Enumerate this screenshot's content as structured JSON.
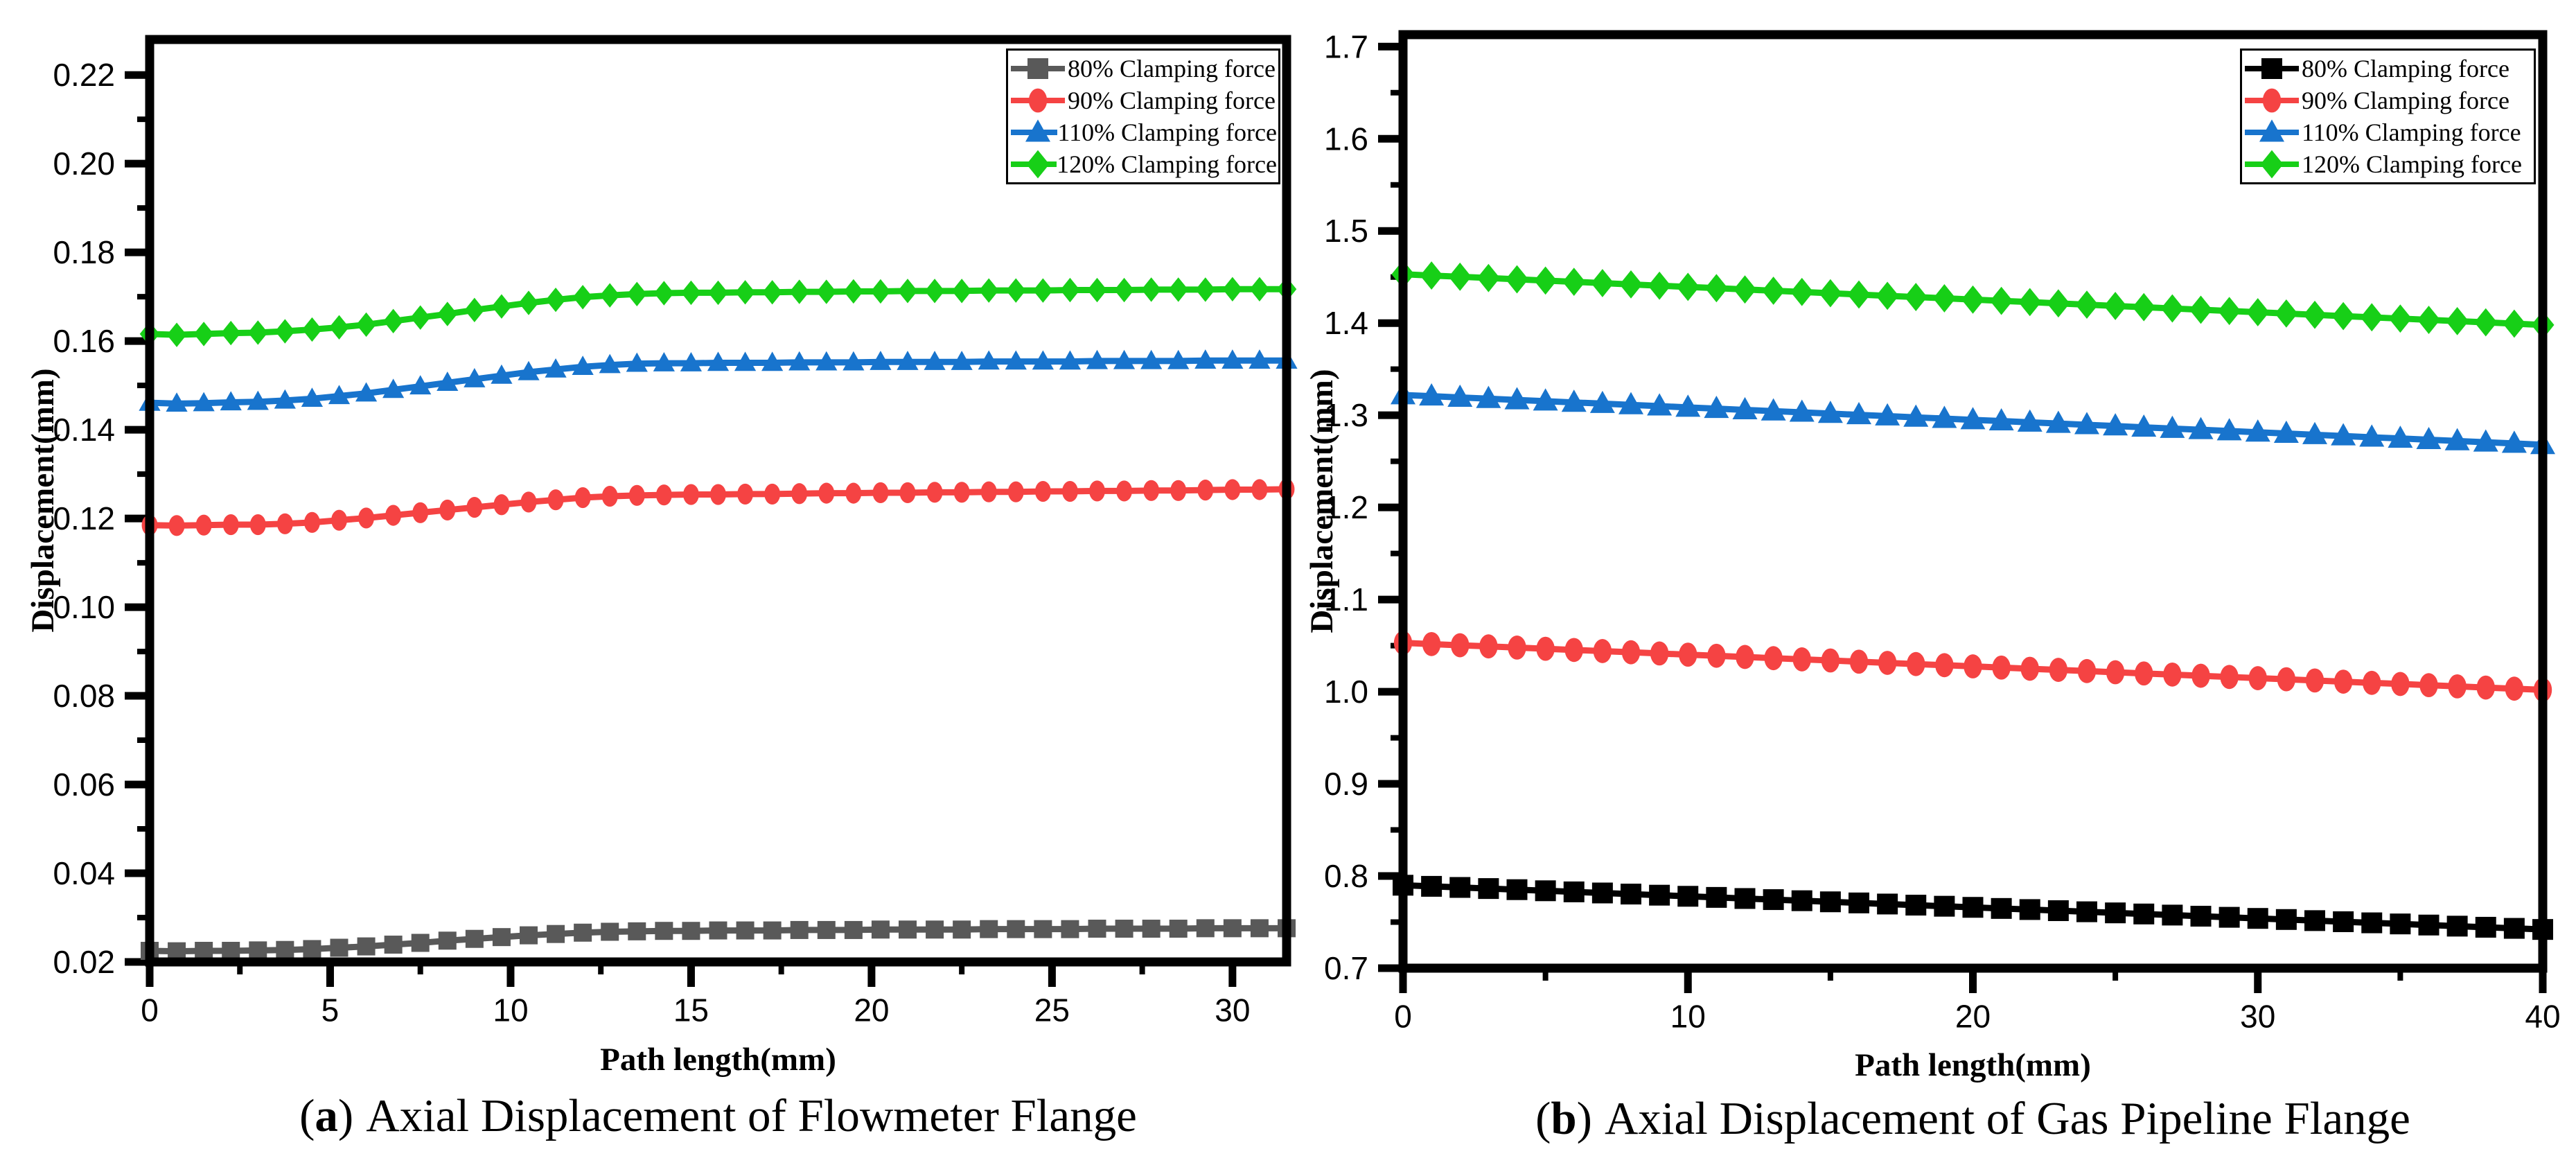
{
  "figure": {
    "background": "#ffffff"
  },
  "chart_data": [
    {
      "type": "line",
      "caption": {
        "open": "(",
        "letter": "a",
        "close": ")",
        "text": "Axial Displacement of Flowmeter Flange"
      },
      "xlabel": "Path length(mm)",
      "ylabel": "Displacement(mm)",
      "xlim": [
        0,
        31.5
      ],
      "ylim": [
        0.02,
        0.228
      ],
      "grid": false,
      "legend_position": "top-right",
      "xticks": {
        "values": [
          0,
          5,
          10,
          15,
          20,
          25,
          30
        ],
        "labels": [
          "0",
          "5",
          "10",
          "15",
          "20",
          "25",
          "30"
        ],
        "minor": [
          2.5,
          7.5,
          12.5,
          17.5,
          22.5,
          27.5
        ]
      },
      "yticks": {
        "values": [
          0.02,
          0.04,
          0.06,
          0.08,
          0.1,
          0.12,
          0.14,
          0.16,
          0.18,
          0.2,
          0.22
        ],
        "labels": [
          "0.02",
          "0.04",
          "0.06",
          "0.08",
          "0.10",
          "0.12",
          "0.14",
          "0.16",
          "0.18",
          "0.20",
          "0.22"
        ],
        "minor": [
          0.03,
          0.05,
          0.07,
          0.09,
          0.11,
          0.13,
          0.15,
          0.17,
          0.19,
          0.21
        ]
      },
      "x": [
        0,
        0.75,
        1.5,
        2.25,
        3,
        3.75,
        4.5,
        5.25,
        6,
        6.75,
        7.5,
        8.25,
        9,
        9.75,
        10.5,
        11.25,
        12,
        12.75,
        13.5,
        14.25,
        15,
        15.75,
        16.5,
        17.25,
        18,
        18.75,
        19.5,
        20.25,
        21,
        21.75,
        22.5,
        23.25,
        24,
        24.75,
        25.5,
        26.25,
        27,
        27.75,
        28.5,
        29.25,
        30,
        30.75,
        31.5
      ],
      "series": [
        {
          "name": "80% Clamping force",
          "color": "#595959",
          "marker": "square",
          "values": [
            0.0225,
            0.0224,
            0.0225,
            0.0225,
            0.0226,
            0.0227,
            0.0229,
            0.0232,
            0.0235,
            0.0239,
            0.0243,
            0.0248,
            0.0252,
            0.0256,
            0.026,
            0.0263,
            0.0266,
            0.0268,
            0.0269,
            0.027,
            0.027,
            0.0271,
            0.0271,
            0.0271,
            0.0272,
            0.0272,
            0.0272,
            0.0273,
            0.0273,
            0.0273,
            0.0273,
            0.0274,
            0.0274,
            0.0274,
            0.0274,
            0.0275,
            0.0275,
            0.0275,
            0.0275,
            0.0276,
            0.0276,
            0.0276,
            0.0276
          ]
        },
        {
          "name": "90% Clamping force",
          "color": "#F54343",
          "marker": "circle",
          "values": [
            0.1185,
            0.1184,
            0.1185,
            0.1186,
            0.1186,
            0.1188,
            0.1191,
            0.1196,
            0.1201,
            0.1207,
            0.1213,
            0.1219,
            0.1225,
            0.1231,
            0.1237,
            0.1242,
            0.1247,
            0.125,
            0.1252,
            0.1253,
            0.1254,
            0.1254,
            0.1255,
            0.1255,
            0.1256,
            0.1257,
            0.1257,
            0.1258,
            0.1258,
            0.1259,
            0.1259,
            0.126,
            0.126,
            0.1261,
            0.1261,
            0.1262,
            0.1262,
            0.1263,
            0.1263,
            0.1264,
            0.1265,
            0.1265,
            0.1266
          ]
        },
        {
          "name": "110% Clamping force",
          "color": "#1874CD",
          "marker": "triangle",
          "values": [
            0.1461,
            0.1459,
            0.146,
            0.1462,
            0.1463,
            0.1466,
            0.147,
            0.1476,
            0.1482,
            0.149,
            0.1498,
            0.1506,
            0.1514,
            0.1522,
            0.153,
            0.1536,
            0.1542,
            0.1546,
            0.1549,
            0.155,
            0.155,
            0.1551,
            0.1551,
            0.1551,
            0.1552,
            0.1552,
            0.1552,
            0.1553,
            0.1553,
            0.1553,
            0.1553,
            0.1554,
            0.1554,
            0.1554,
            0.1554,
            0.1555,
            0.1555,
            0.1555,
            0.1555,
            0.1556,
            0.1556,
            0.1556,
            0.1556
          ]
        },
        {
          "name": "120% Clamping force",
          "color": "#17CF17",
          "marker": "diamond",
          "values": [
            0.1616,
            0.1614,
            0.1616,
            0.1618,
            0.1619,
            0.1622,
            0.1626,
            0.1631,
            0.1637,
            0.1645,
            0.1653,
            0.1661,
            0.167,
            0.1678,
            0.1686,
            0.1693,
            0.1699,
            0.1703,
            0.1706,
            0.1708,
            0.1709,
            0.1709,
            0.171,
            0.171,
            0.1711,
            0.1711,
            0.1712,
            0.1712,
            0.1713,
            0.1713,
            0.1713,
            0.1714,
            0.1714,
            0.1714,
            0.1715,
            0.1715,
            0.1715,
            0.1716,
            0.1716,
            0.1716,
            0.1717,
            0.1717,
            0.1717
          ]
        }
      ]
    },
    {
      "type": "line",
      "caption": {
        "open": "(",
        "letter": "b",
        "close": ")",
        "text": "Axial Displacement of Gas Pipeline Flange"
      },
      "xlabel": "Path length(mm)",
      "ylabel": "Displacement(mm)",
      "xlim": [
        0,
        40
      ],
      "ylim": [
        0.7,
        1.713
      ],
      "grid": false,
      "legend_position": "top-right",
      "xticks": {
        "values": [
          0,
          10,
          20,
          30,
          40
        ],
        "labels": [
          "0",
          "10",
          "20",
          "30",
          "40"
        ],
        "minor": [
          5,
          15,
          25,
          35
        ]
      },
      "yticks": {
        "values": [
          0.7,
          0.8,
          0.9,
          1.0,
          1.1,
          1.2,
          1.3,
          1.4,
          1.5,
          1.6,
          1.7
        ],
        "labels": [
          "0.7",
          "0.8",
          "0.9",
          "1.0",
          "1.1",
          "1.2",
          "1.3",
          "1.4",
          "1.5",
          "1.6",
          "1.7"
        ],
        "minor": [
          0.75,
          0.85,
          0.95,
          1.05,
          1.15,
          1.25,
          1.35,
          1.45,
          1.55,
          1.65
        ]
      },
      "x": [
        0,
        1,
        2,
        3,
        4,
        5,
        6,
        7,
        8,
        9,
        10,
        11,
        12,
        13,
        14,
        15,
        16,
        17,
        18,
        19,
        20,
        21,
        22,
        23,
        24,
        25,
        26,
        27,
        28,
        29,
        30,
        31,
        32,
        33,
        34,
        35,
        36,
        37,
        38,
        39,
        40
      ],
      "series": [
        {
          "name": "80% Clamping force",
          "color": "#000000",
          "marker": "square",
          "values": [
            0.79,
            0.7888,
            0.7876,
            0.7864,
            0.7852,
            0.784,
            0.7828,
            0.7816,
            0.7804,
            0.7792,
            0.778,
            0.7768,
            0.7756,
            0.7744,
            0.7732,
            0.772,
            0.7708,
            0.7696,
            0.7684,
            0.7672,
            0.766,
            0.7648,
            0.7636,
            0.7624,
            0.7612,
            0.76,
            0.7588,
            0.7576,
            0.7564,
            0.7552,
            0.754,
            0.7528,
            0.7516,
            0.7504,
            0.7492,
            0.748,
            0.7468,
            0.7456,
            0.7444,
            0.7432,
            0.742
          ]
        },
        {
          "name": "90% Clamping force",
          "color": "#F54343",
          "marker": "circle",
          "values": [
            1.053,
            1.0517,
            1.0504,
            1.0492,
            1.0479,
            1.0466,
            1.0453,
            1.0441,
            1.0428,
            1.0415,
            1.0402,
            1.039,
            1.0377,
            1.0364,
            1.0351,
            1.0339,
            1.0326,
            1.0313,
            1.03,
            1.0288,
            1.0275,
            1.0262,
            1.0249,
            1.0237,
            1.0224,
            1.0211,
            1.0198,
            1.0186,
            1.0173,
            1.016,
            1.0147,
            1.0135,
            1.0122,
            1.0109,
            1.0096,
            1.0084,
            1.0071,
            1.0058,
            1.0045,
            1.0033,
            1.002
          ]
        },
        {
          "name": "110% Clamping force",
          "color": "#1874CD",
          "marker": "triangle",
          "values": [
            1.322,
            1.3207,
            1.3193,
            1.318,
            1.3166,
            1.3153,
            1.3139,
            1.3126,
            1.3112,
            1.3099,
            1.3085,
            1.3072,
            1.3058,
            1.3045,
            1.3031,
            1.3018,
            1.3004,
            1.2991,
            1.2977,
            1.2964,
            1.295,
            1.2937,
            1.2923,
            1.291,
            1.2896,
            1.2883,
            1.2869,
            1.2856,
            1.2842,
            1.2829,
            1.2815,
            1.2802,
            1.2788,
            1.2775,
            1.2761,
            1.2748,
            1.2734,
            1.2721,
            1.2707,
            1.2694,
            1.268
          ]
        },
        {
          "name": "120% Clamping force",
          "color": "#17CF17",
          "marker": "diamond",
          "values": [
            1.453,
            1.4516,
            1.4503,
            1.4489,
            1.4475,
            1.4461,
            1.4448,
            1.4434,
            1.442,
            1.4406,
            1.4393,
            1.4379,
            1.4365,
            1.4351,
            1.4338,
            1.4324,
            1.431,
            1.4296,
            1.4283,
            1.4269,
            1.4255,
            1.4241,
            1.4228,
            1.4214,
            1.42,
            1.4186,
            1.4173,
            1.4159,
            1.4145,
            1.4131,
            1.4118,
            1.4104,
            1.409,
            1.4076,
            1.4063,
            1.4049,
            1.4035,
            1.4021,
            1.4008,
            1.3994,
            1.398
          ]
        }
      ]
    }
  ]
}
